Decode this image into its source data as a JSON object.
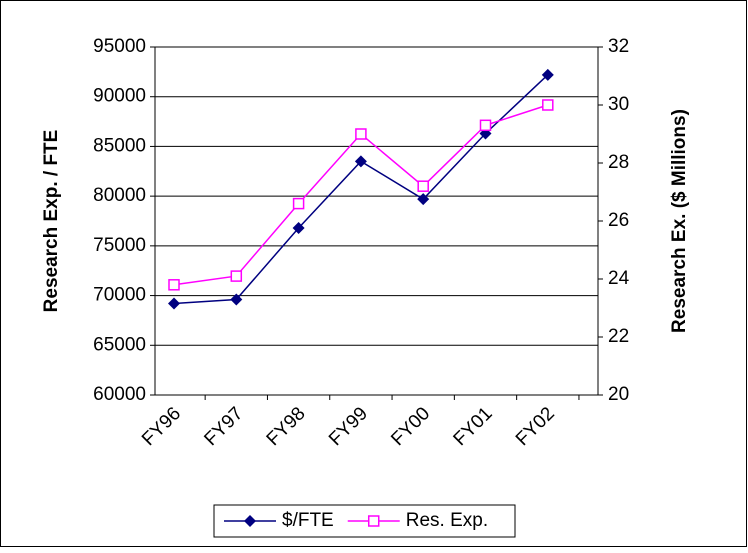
{
  "chart_data": {
    "type": "line",
    "y_label": "Research Exp. / FTE",
    "y2_label": "Research Ex. ($ Millions)",
    "categories": [
      "FY96",
      "FY97",
      "FY98",
      "FY99",
      "FY00",
      "FY01",
      "FY02"
    ],
    "series": [
      {
        "name": "$/FTE",
        "color": "#000080",
        "marker": "diamond",
        "values": [
          69200,
          69600,
          76800,
          83500,
          79700,
          86300,
          92200
        ]
      },
      {
        "name": "Res. Exp.",
        "color": "#ff00ff",
        "marker": "square",
        "axis": "y2",
        "values": [
          23.8,
          24.1,
          26.6,
          29.0,
          27.2,
          29.3,
          30.0
        ]
      }
    ],
    "ylim": [
      60000,
      95000
    ],
    "yticks": [
      60000,
      65000,
      70000,
      75000,
      80000,
      85000,
      90000,
      95000
    ],
    "y2lim": [
      20,
      32
    ],
    "y2ticks": [
      20,
      22,
      24,
      26,
      28,
      30,
      32
    ],
    "grid": true,
    "legend": "bottom"
  }
}
